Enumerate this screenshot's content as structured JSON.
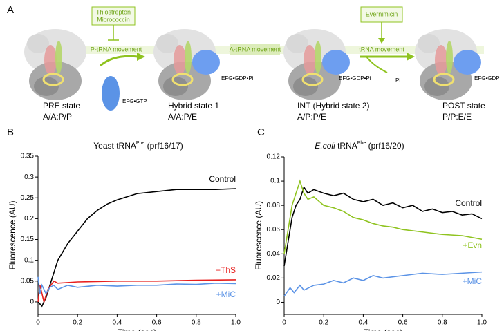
{
  "panel_a": {
    "letter": "A",
    "inhibitor_1": {
      "line1": "Thiostrepton",
      "line2": "Micrococcin"
    },
    "inhibitor_2": "Evernimicin",
    "movement_1": "P-tRNA movement",
    "movement_2": "A-tRNA movement",
    "movement_3": "tRNA movement",
    "efg_gtp": "EFG•GTP",
    "efg_gdp_pi_1": "EFG•GDP•Pi",
    "efg_gdp_pi_2": "EFG•GDP•Pi",
    "pi": "Pi",
    "efg_gdp": "EFG•GDP",
    "states": [
      {
        "name": "PRE state",
        "code": "A/A:P/P"
      },
      {
        "name": "Hybrid state 1",
        "code": "A/A:P/E"
      },
      {
        "name": "INT (Hybrid state 2)",
        "code": "A/P:P/E"
      },
      {
        "name": "POST state",
        "code": "P/P:E/E"
      }
    ]
  },
  "chart_data": [
    {
      "type": "line",
      "panel": "B",
      "title": "Yeast tRNA",
      "title_sup": "Phe",
      "title_suffix": " (prf16/17)",
      "xlabel": "Time (sec)",
      "ylabel": "Fluorescence (AU)",
      "xlim": [
        0,
        1
      ],
      "ylim": [
        -0.03,
        0.35
      ],
      "xticks": [
        0,
        0.2,
        0.4,
        0.6,
        0.8,
        {
          "value": 1,
          "label": "1.0"
        }
      ],
      "yticks": [
        0,
        0.05,
        0.1,
        0.15,
        0.2,
        0.25,
        0.3,
        0.35
      ],
      "series": [
        {
          "name": "Control",
          "color": "#000000",
          "x": [
            0,
            0.02,
            0.04,
            0.06,
            0.08,
            0.1,
            0.15,
            0.2,
            0.25,
            0.3,
            0.35,
            0.4,
            0.5,
            0.6,
            0.7,
            0.8,
            0.9,
            1.0
          ],
          "values": [
            0,
            -0.01,
            0.01,
            0.04,
            0.07,
            0.1,
            0.14,
            0.17,
            0.2,
            0.22,
            0.235,
            0.245,
            0.26,
            0.265,
            0.27,
            0.27,
            0.27,
            0.272
          ]
        },
        {
          "name": "+ThS",
          "color": "#e8201f",
          "x": [
            0,
            0.01,
            0.03,
            0.05,
            0.08,
            0.1,
            0.2,
            0.4,
            0.6,
            0.8,
            1.0
          ],
          "values": [
            0,
            0.04,
            0,
            0.03,
            0.05,
            0.045,
            0.048,
            0.05,
            0.05,
            0.052,
            0.053
          ]
        },
        {
          "name": "+MiC",
          "color": "#5b93e6",
          "x": [
            0,
            0.01,
            0.02,
            0.04,
            0.06,
            0.08,
            0.1,
            0.15,
            0.2,
            0.3,
            0.4,
            0.5,
            0.6,
            0.7,
            0.8,
            0.9,
            1.0
          ],
          "values": [
            0.06,
            0.02,
            0.04,
            0.02,
            0.035,
            0.04,
            0.03,
            0.04,
            0.035,
            0.04,
            0.038,
            0.04,
            0.04,
            0.043,
            0.042,
            0.045,
            0.044
          ]
        }
      ]
    },
    {
      "type": "line",
      "panel": "C",
      "title_italic": "E.coli",
      "title": " tRNA",
      "title_sup": "Phe",
      "title_suffix": " (prf16/20)",
      "xlabel": "Time (sec)",
      "ylabel": "Fluorescence (AU)",
      "xlim": [
        0,
        1
      ],
      "ylim": [
        -0.01,
        0.12
      ],
      "xticks": [
        0,
        0.2,
        0.4,
        0.6,
        0.8,
        {
          "value": 1,
          "label": "1.0"
        }
      ],
      "yticks": [
        0,
        0.02,
        0.04,
        0.06,
        0.08,
        0.1,
        0.12
      ],
      "series": [
        {
          "name": "Control",
          "color": "#000000",
          "x": [
            0,
            0.02,
            0.04,
            0.06,
            0.08,
            0.1,
            0.12,
            0.15,
            0.2,
            0.25,
            0.3,
            0.35,
            0.4,
            0.45,
            0.5,
            0.55,
            0.6,
            0.65,
            0.7,
            0.75,
            0.8,
            0.85,
            0.9,
            0.95,
            1.0
          ],
          "values": [
            0.03,
            0.05,
            0.07,
            0.08,
            0.085,
            0.095,
            0.09,
            0.093,
            0.09,
            0.088,
            0.09,
            0.085,
            0.083,
            0.085,
            0.08,
            0.082,
            0.078,
            0.08,
            0.075,
            0.077,
            0.074,
            0.075,
            0.072,
            0.073,
            0.069
          ]
        },
        {
          "name": "+Evn",
          "color": "#8fc31f",
          "x": [
            0,
            0.02,
            0.04,
            0.06,
            0.08,
            0.1,
            0.12,
            0.15,
            0.2,
            0.25,
            0.3,
            0.35,
            0.4,
            0.45,
            0.5,
            0.55,
            0.6,
            0.7,
            0.8,
            0.9,
            1.0
          ],
          "values": [
            0.04,
            0.06,
            0.08,
            0.09,
            0.1,
            0.09,
            0.085,
            0.087,
            0.08,
            0.078,
            0.075,
            0.07,
            0.068,
            0.065,
            0.063,
            0.062,
            0.06,
            0.058,
            0.056,
            0.055,
            0.052
          ]
        },
        {
          "name": "+MiC",
          "color": "#5b93e6",
          "x": [
            0,
            0.03,
            0.05,
            0.08,
            0.1,
            0.15,
            0.2,
            0.25,
            0.3,
            0.35,
            0.4,
            0.45,
            0.5,
            0.6,
            0.7,
            0.8,
            0.9,
            1.0
          ],
          "values": [
            0.005,
            0.012,
            0.008,
            0.014,
            0.01,
            0.014,
            0.015,
            0.018,
            0.016,
            0.02,
            0.018,
            0.022,
            0.02,
            0.022,
            0.024,
            0.023,
            0.024,
            0.025
          ]
        }
      ]
    }
  ]
}
